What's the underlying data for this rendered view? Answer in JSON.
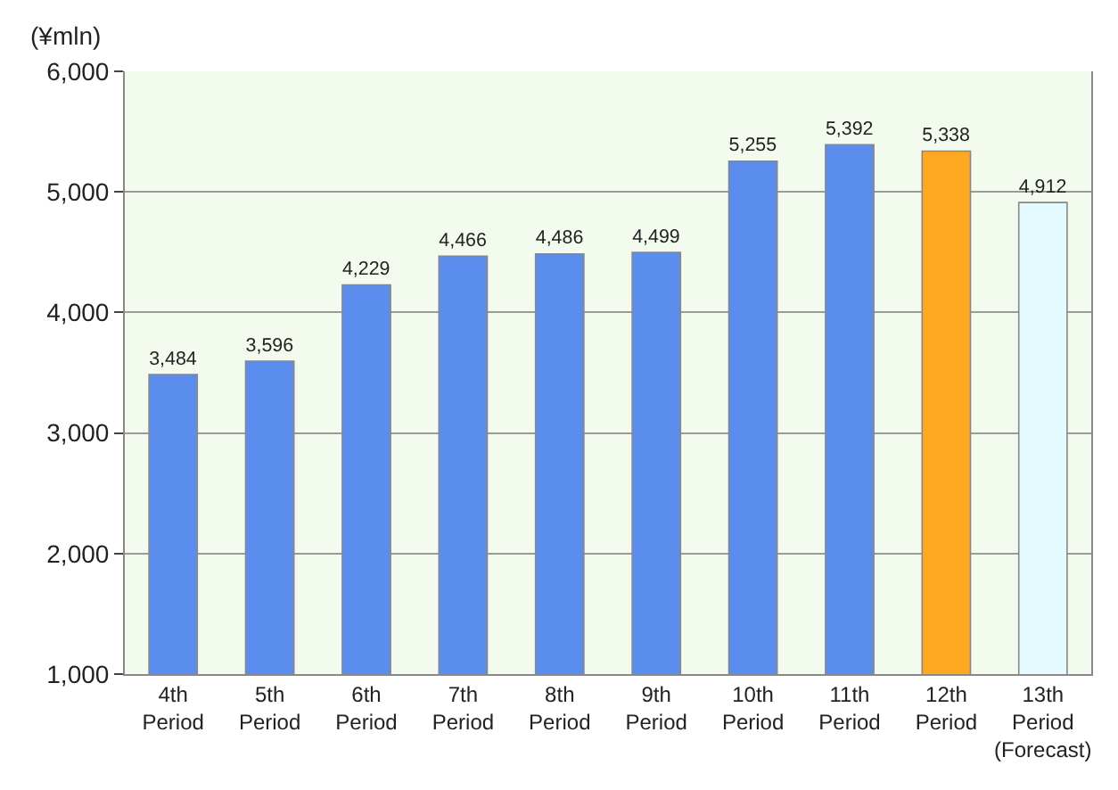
{
  "chart_data": {
    "type": "bar",
    "ylabel": "(¥mln)",
    "categories": [
      "4th\nPeriod",
      "5th\nPeriod",
      "6th\nPeriod",
      "7th\nPeriod",
      "8th\nPeriod",
      "9th\nPeriod",
      "10th\nPeriod",
      "11th\nPeriod",
      "12th\nPeriod",
      "13th\nPeriod\n(Forecast)"
    ],
    "values": [
      3484,
      3596,
      4229,
      4466,
      4486,
      4499,
      5255,
      5392,
      5338,
      4912
    ],
    "colors": [
      "#5b8def",
      "#5b8def",
      "#5b8def",
      "#5b8def",
      "#5b8def",
      "#5b8def",
      "#5b8def",
      "#5b8def",
      "#ffa820",
      "#e4faff"
    ],
    "ylim": [
      1000,
      6000
    ],
    "yticks": [
      {
        "value": 1000,
        "label": "1,000"
      },
      {
        "value": 2000,
        "label": "2,000"
      },
      {
        "value": 3000,
        "label": "3,000"
      },
      {
        "value": 4000,
        "label": "4,000"
      },
      {
        "value": 5000,
        "label": "5,000"
      },
      {
        "value": 6000,
        "label": "6,000"
      }
    ],
    "value_labels": [
      "3,484",
      "3,596",
      "4,229",
      "4,466",
      "4,486",
      "4,499",
      "5,255",
      "5,392",
      "5,338",
      "4,912"
    ],
    "grid": "y",
    "legend": false
  }
}
